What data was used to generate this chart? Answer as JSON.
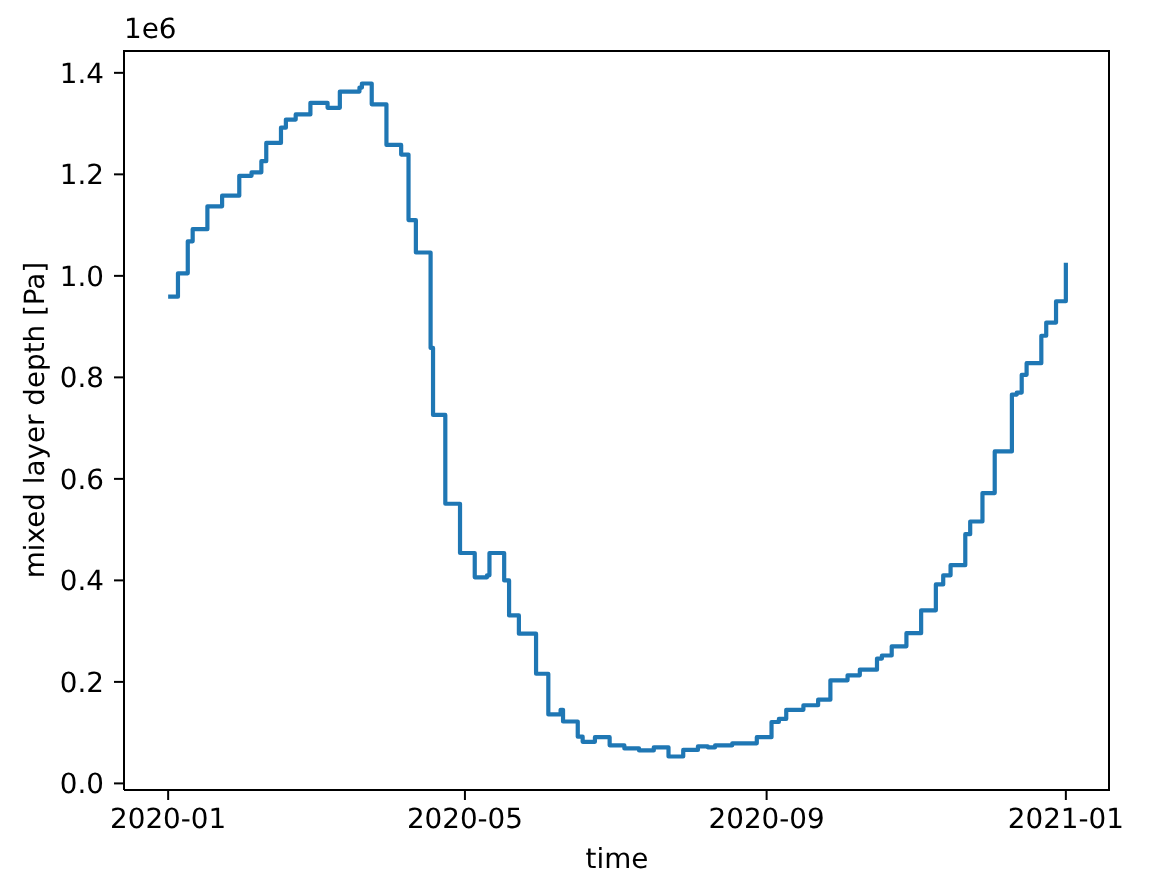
{
  "chart_data": {
    "type": "step",
    "xlabel": "time",
    "ylabel": "mixed layer depth [Pa]",
    "annotations": [
      "1e6"
    ],
    "color": "#1f77b4",
    "x": [
      "2020-01-01",
      "2020-01-05",
      "2020-01-09",
      "2020-01-11",
      "2020-01-17",
      "2020-01-23",
      "2020-01-30",
      "2020-02-04",
      "2020-02-08",
      "2020-02-10",
      "2020-02-16",
      "2020-02-18",
      "2020-02-22",
      "2020-02-28",
      "2020-03-06",
      "2020-03-11",
      "2020-03-19",
      "2020-03-20",
      "2020-03-24",
      "2020-03-30",
      "2020-04-05",
      "2020-04-08",
      "2020-04-11",
      "2020-04-17",
      "2020-04-18",
      "2020-04-23",
      "2020-04-29",
      "2020-05-05",
      "2020-05-10",
      "2020-05-11",
      "2020-05-17",
      "2020-05-19",
      "2020-05-23",
      "2020-05-30",
      "2020-06-04",
      "2020-06-09",
      "2020-06-10",
      "2020-06-16",
      "2020-06-18",
      "2020-06-23",
      "2020-06-29",
      "2020-07-05",
      "2020-07-11",
      "2020-07-17",
      "2020-07-23",
      "2020-07-29",
      "2020-08-04",
      "2020-08-08",
      "2020-08-11",
      "2020-08-18",
      "2020-08-28",
      "2020-09-03",
      "2020-09-06",
      "2020-09-09",
      "2020-09-16",
      "2020-09-22",
      "2020-09-27",
      "2020-10-04",
      "2020-10-09",
      "2020-10-16",
      "2020-10-18",
      "2020-10-22",
      "2020-10-28",
      "2020-11-03",
      "2020-11-09",
      "2020-11-12",
      "2020-11-15",
      "2020-11-21",
      "2020-11-23",
      "2020-11-28",
      "2020-12-03",
      "2020-12-10",
      "2020-12-12",
      "2020-12-14",
      "2020-12-16",
      "2020-12-22",
      "2020-12-24",
      "2020-12-28",
      "2021-01-01"
    ],
    "values": [
      0.959,
      1.005,
      1.068,
      1.092,
      1.137,
      1.158,
      1.197,
      1.204,
      1.226,
      1.262,
      1.292,
      1.308,
      1.318,
      1.341,
      1.331,
      1.363,
      1.371,
      1.379,
      1.338,
      1.258,
      1.239,
      1.11,
      1.046,
      0.858,
      0.726,
      0.551,
      0.454,
      0.406,
      0.41,
      0.454,
      0.4,
      0.331,
      0.295,
      0.216,
      0.136,
      0.145,
      0.122,
      0.092,
      0.082,
      0.091,
      0.075,
      0.069,
      0.065,
      0.071,
      0.053,
      0.066,
      0.073,
      0.071,
      0.075,
      0.079,
      0.091,
      0.121,
      0.127,
      0.145,
      0.154,
      0.165,
      0.203,
      0.213,
      0.224,
      0.246,
      0.252,
      0.27,
      0.296,
      0.341,
      0.392,
      0.41,
      0.43,
      0.491,
      0.516,
      0.572,
      0.654,
      0.766,
      0.77,
      0.805,
      0.828,
      0.882,
      0.908,
      0.95,
      1.026
    ],
    "xlim": [
      "2019-12-14",
      "2021-01-19"
    ],
    "xticks": [
      "2020-01",
      "2020-05",
      "2020-09",
      "2021-01"
    ],
    "ylim": [
      -0.013,
      1.445
    ],
    "yticks": [
      {
        "value": 0,
        "label": "0.0"
      },
      0.2,
      0.4,
      0.6,
      0.8,
      {
        "value": 1,
        "label": "1.0"
      },
      1.2,
      1.4
    ]
  }
}
